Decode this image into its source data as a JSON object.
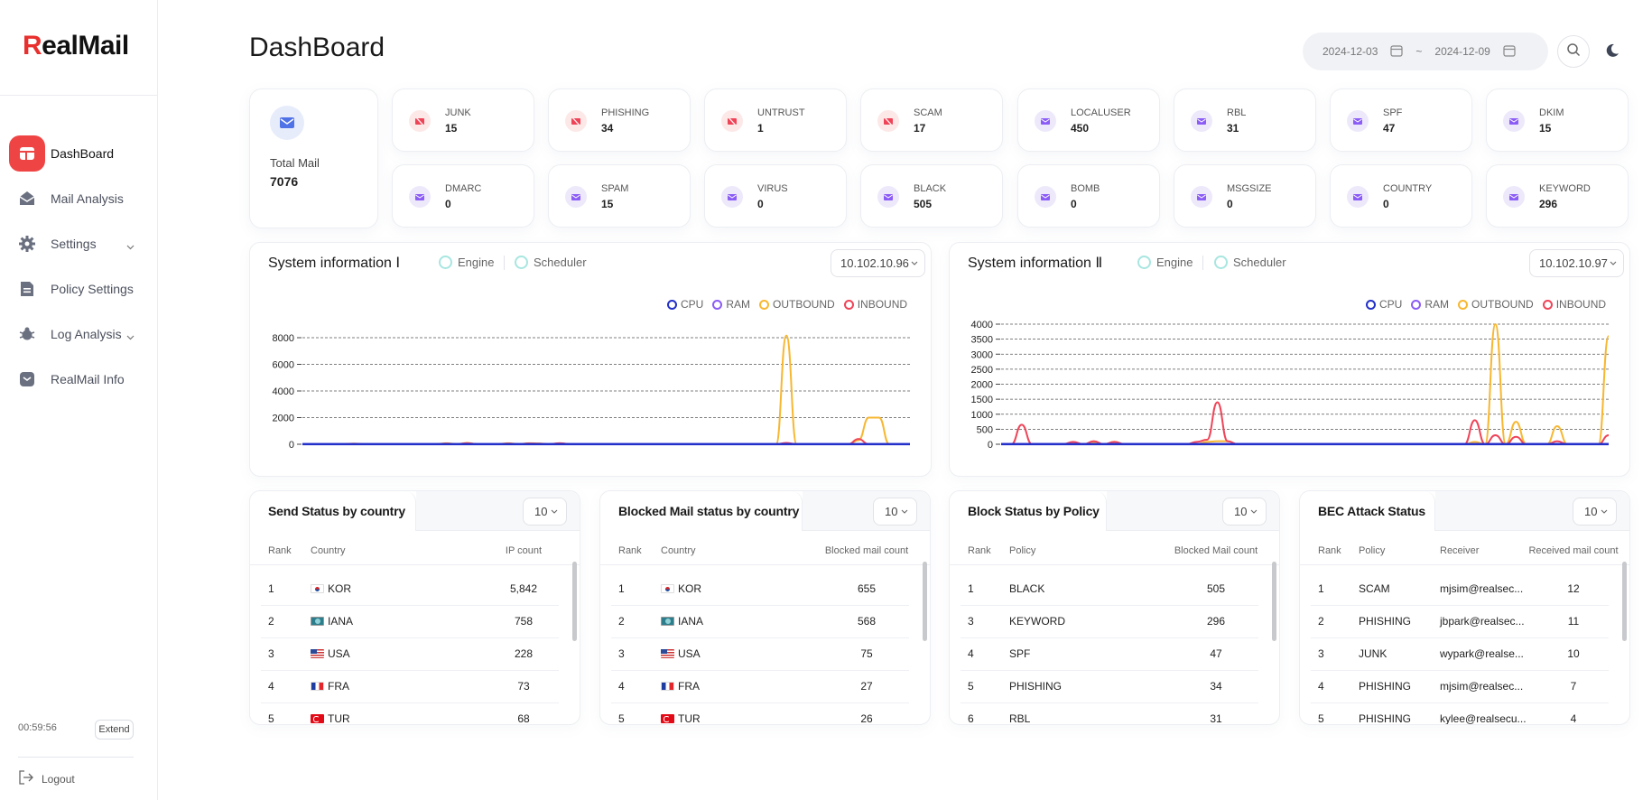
{
  "app": {
    "logo_prefix": "R",
    "logo_rest": "ealMail"
  },
  "sidebar": {
    "items": [
      {
        "label": "DashBoard",
        "icon": "dashboard-icon"
      },
      {
        "label": "Mail Analysis",
        "icon": "mail-open-icon"
      },
      {
        "label": "Settings",
        "icon": "gear-icon"
      },
      {
        "label": "Policy Settings",
        "icon": "document-icon"
      },
      {
        "label": "Log Analysis",
        "icon": "bug-icon"
      },
      {
        "label": "RealMail Info",
        "icon": "shield-icon"
      }
    ],
    "session_time": "00:59:56",
    "extend_label": "Extend",
    "logout_label": "Logout"
  },
  "header": {
    "title": "DashBoard",
    "date_from": "2024-12-03",
    "date_sep": "~",
    "date_to": "2024-12-09"
  },
  "stats": {
    "total_label": "Total Mail",
    "total_value": "7076",
    "cards": [
      {
        "name": "JUNK",
        "value": "15",
        "tone": "red"
      },
      {
        "name": "PHISHING",
        "value": "34",
        "tone": "red"
      },
      {
        "name": "UNTRUST",
        "value": "1",
        "tone": "red"
      },
      {
        "name": "SCAM",
        "value": "17",
        "tone": "red"
      },
      {
        "name": "LOCALUSER",
        "value": "450",
        "tone": "purple"
      },
      {
        "name": "RBL",
        "value": "31",
        "tone": "purple"
      },
      {
        "name": "SPF",
        "value": "47",
        "tone": "purple"
      },
      {
        "name": "DKIM",
        "value": "15",
        "tone": "purple"
      },
      {
        "name": "DMARC",
        "value": "0",
        "tone": "purple"
      },
      {
        "name": "SPAM",
        "value": "15",
        "tone": "purple"
      },
      {
        "name": "VIRUS",
        "value": "0",
        "tone": "purple"
      },
      {
        "name": "BLACK",
        "value": "505",
        "tone": "purple"
      },
      {
        "name": "BOMB",
        "value": "0",
        "tone": "purple"
      },
      {
        "name": "MSGSIZE",
        "value": "0",
        "tone": "purple"
      },
      {
        "name": "COUNTRY",
        "value": "0",
        "tone": "purple"
      },
      {
        "name": "KEYWORD",
        "value": "296",
        "tone": "purple"
      }
    ]
  },
  "sysinfo": [
    {
      "title": "System information Ⅰ",
      "radio_engine": "Engine",
      "radio_scheduler": "Scheduler",
      "ip": "10.102.10.96"
    },
    {
      "title": "System information Ⅱ",
      "radio_engine": "Engine",
      "radio_scheduler": "Scheduler",
      "ip": "10.102.10.97"
    }
  ],
  "colors": {
    "cpu": "#2330c9",
    "ram": "#8b5cf6",
    "outbound": "#f7b731",
    "inbound": "#ef4458",
    "accent": "#ef4444"
  },
  "chart_data": [
    {
      "type": "line",
      "ylim": [
        0,
        8000
      ],
      "yticks": [
        0,
        2000,
        4000,
        6000,
        8000
      ],
      "legend": [
        "CPU",
        "RAM",
        "OUTBOUND",
        "INBOUND"
      ],
      "grid": true,
      "legend_position": "top-right",
      "series": [
        {
          "name": "CPU",
          "values": [
            5,
            5,
            5,
            5,
            5,
            5,
            5,
            5,
            5,
            5,
            5,
            5,
            5,
            5,
            5,
            5,
            5,
            5,
            5,
            5,
            5,
            5,
            5,
            5,
            5,
            5,
            5,
            5,
            5,
            5,
            5,
            5,
            5,
            5,
            5,
            5,
            5,
            5,
            5,
            5,
            5,
            5,
            5,
            5,
            5,
            5,
            5,
            5,
            5,
            5,
            5,
            5,
            5,
            5,
            5,
            5,
            5,
            5,
            5,
            5
          ]
        },
        {
          "name": "RAM",
          "values": [
            10,
            10,
            10,
            10,
            10,
            10,
            10,
            10,
            10,
            10,
            10,
            10,
            10,
            10,
            10,
            10,
            10,
            10,
            10,
            10,
            10,
            10,
            10,
            10,
            10,
            10,
            10,
            10,
            10,
            10,
            10,
            10,
            10,
            10,
            10,
            10,
            10,
            10,
            10,
            10,
            10,
            10,
            10,
            10,
            10,
            10,
            10,
            10,
            10,
            10,
            10,
            10,
            10,
            10,
            10,
            10,
            10,
            10,
            10,
            10
          ]
        },
        {
          "name": "OUTBOUND",
          "values": [
            0,
            0,
            0,
            0,
            0,
            50,
            0,
            0,
            0,
            0,
            0,
            0,
            0,
            0,
            80,
            0,
            100,
            0,
            0,
            0,
            80,
            0,
            80,
            60,
            0,
            80,
            0,
            0,
            0,
            0,
            0,
            0,
            0,
            0,
            0,
            0,
            0,
            0,
            0,
            0,
            0,
            0,
            0,
            0,
            0,
            0,
            0,
            8200,
            0,
            0,
            0,
            0,
            0,
            0,
            300,
            2000,
            2000,
            0,
            0,
            0
          ]
        },
        {
          "name": "INBOUND",
          "values": [
            0,
            0,
            0,
            0,
            0,
            30,
            0,
            0,
            0,
            0,
            0,
            0,
            0,
            0,
            50,
            0,
            80,
            0,
            0,
            0,
            50,
            0,
            60,
            40,
            0,
            80,
            0,
            0,
            0,
            0,
            0,
            0,
            0,
            0,
            0,
            0,
            0,
            0,
            0,
            0,
            0,
            0,
            0,
            0,
            0,
            0,
            0,
            100,
            0,
            0,
            0,
            0,
            0,
            0,
            400,
            0,
            0,
            0,
            0,
            0
          ]
        }
      ]
    },
    {
      "type": "line",
      "ylim": [
        0,
        4000
      ],
      "yticks": [
        0,
        500,
        1000,
        1500,
        2000,
        2500,
        3000,
        3500,
        4000
      ],
      "legend": [
        "CPU",
        "RAM",
        "OUTBOUND",
        "INBOUND"
      ],
      "grid": true,
      "legend_position": "top-right",
      "series": [
        {
          "name": "CPU",
          "values": [
            5,
            5,
            5,
            5,
            5,
            5,
            5,
            5,
            5,
            5,
            5,
            5,
            5,
            5,
            5,
            5,
            5,
            5,
            5,
            5,
            5,
            5,
            5,
            5,
            5,
            5,
            5,
            5,
            5,
            5,
            5,
            5,
            5,
            5,
            5,
            5,
            5,
            5,
            5,
            5,
            5,
            5,
            5,
            5,
            5,
            5,
            5,
            5,
            5,
            5,
            5,
            5,
            5,
            5,
            5,
            5,
            5,
            5,
            5,
            5
          ]
        },
        {
          "name": "RAM",
          "values": [
            10,
            10,
            10,
            10,
            10,
            10,
            10,
            10,
            10,
            10,
            10,
            10,
            10,
            10,
            10,
            10,
            10,
            10,
            10,
            10,
            10,
            10,
            10,
            10,
            10,
            10,
            10,
            10,
            10,
            10,
            10,
            10,
            10,
            10,
            10,
            10,
            10,
            10,
            10,
            10,
            10,
            10,
            10,
            10,
            10,
            10,
            10,
            10,
            10,
            10,
            10,
            10,
            10,
            10,
            10,
            10,
            10,
            10,
            10,
            10
          ]
        },
        {
          "name": "OUTBOUND",
          "values": [
            0,
            0,
            0,
            0,
            0,
            0,
            0,
            50,
            0,
            60,
            0,
            80,
            0,
            0,
            0,
            0,
            0,
            0,
            0,
            0,
            80,
            100,
            100,
            0,
            0,
            0,
            0,
            0,
            0,
            0,
            0,
            0,
            0,
            0,
            0,
            0,
            0,
            0,
            0,
            0,
            0,
            0,
            0,
            0,
            0,
            0,
            80,
            0,
            4000,
            0,
            750,
            0,
            0,
            0,
            600,
            0,
            0,
            0,
            0,
            3600
          ]
        },
        {
          "name": "INBOUND",
          "values": [
            0,
            0,
            650,
            0,
            0,
            0,
            0,
            80,
            0,
            100,
            0,
            80,
            0,
            0,
            0,
            0,
            0,
            0,
            0,
            80,
            150,
            1400,
            100,
            0,
            0,
            0,
            0,
            0,
            0,
            0,
            0,
            0,
            0,
            0,
            0,
            0,
            0,
            0,
            0,
            0,
            0,
            0,
            0,
            0,
            0,
            0,
            800,
            0,
            300,
            0,
            250,
            0,
            0,
            0,
            100,
            0,
            0,
            0,
            0,
            300
          ]
        }
      ]
    }
  ],
  "tables": {
    "send": {
      "title": "Send Status by country",
      "count": "10",
      "headers": [
        "Rank",
        "Country",
        "IP count"
      ],
      "rows": [
        {
          "rank": "1",
          "flag": "kor",
          "country": "KOR",
          "value": "5,842"
        },
        {
          "rank": "2",
          "flag": "iana",
          "country": "IANA",
          "value": "758"
        },
        {
          "rank": "3",
          "flag": "usa",
          "country": "USA",
          "value": "228"
        },
        {
          "rank": "4",
          "flag": "fra",
          "country": "FRA",
          "value": "73"
        },
        {
          "rank": "5",
          "flag": "tur",
          "country": "TUR",
          "value": "68"
        }
      ]
    },
    "blocked": {
      "title": "Blocked Mail status by country",
      "count": "10",
      "headers": [
        "Rank",
        "Country",
        "Blocked mail count"
      ],
      "rows": [
        {
          "rank": "1",
          "flag": "kor",
          "country": "KOR",
          "value": "655"
        },
        {
          "rank": "2",
          "flag": "iana",
          "country": "IANA",
          "value": "568"
        },
        {
          "rank": "3",
          "flag": "usa",
          "country": "USA",
          "value": "75"
        },
        {
          "rank": "4",
          "flag": "fra",
          "country": "FRA",
          "value": "27"
        },
        {
          "rank": "5",
          "flag": "tur",
          "country": "TUR",
          "value": "26"
        }
      ]
    },
    "policy": {
      "title": "Block Status by Policy",
      "count": "10",
      "headers": [
        "Rank",
        "Policy",
        "Blocked Mail count"
      ],
      "rows": [
        {
          "rank": "1",
          "policy": "BLACK",
          "value": "505"
        },
        {
          "rank": "3",
          "policy": "KEYWORD",
          "value": "296"
        },
        {
          "rank": "4",
          "policy": "SPF",
          "value": "47"
        },
        {
          "rank": "5",
          "policy": "PHISHING",
          "value": "34"
        },
        {
          "rank": "6",
          "policy": "RBL",
          "value": "31"
        }
      ]
    },
    "bec": {
      "title": "BEC Attack Status",
      "count": "10",
      "headers": [
        "Rank",
        "Policy",
        "Receiver",
        "Received mail count"
      ],
      "rows": [
        {
          "rank": "1",
          "policy": "SCAM",
          "receiver": "mjsim@realsec...",
          "value": "12"
        },
        {
          "rank": "2",
          "policy": "PHISHING",
          "receiver": "jbpark@realsec...",
          "value": "11"
        },
        {
          "rank": "3",
          "policy": "JUNK",
          "receiver": "wypark@realse...",
          "value": "10"
        },
        {
          "rank": "4",
          "policy": "PHISHING",
          "receiver": "mjsim@realsec...",
          "value": "7"
        },
        {
          "rank": "5",
          "policy": "PHISHING",
          "receiver": "kylee@realsecu...",
          "value": "4"
        }
      ]
    }
  }
}
